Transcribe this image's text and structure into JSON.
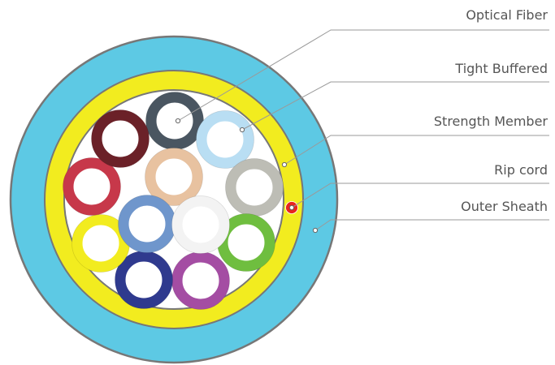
{
  "labels": {
    "optical_fiber": "Optical Fiber",
    "tight_buffered": "Tight Buffered",
    "strength_member": "Strength Member",
    "rip_cord": "Rip cord",
    "outer_sheath": "Outer Sheath"
  },
  "colors": {
    "outer_sheath": "#5DC9E4",
    "strength_member": "#F2EC1F",
    "core": "#FFFFFF",
    "outline": "#777777",
    "leader_line": "#9A9A9A",
    "rip_cord": "#E8241F",
    "fibers": [
      "#4A5661",
      "#B9DEF3",
      "#BDBDB5",
      "#6FBE3F",
      "#A44DA3",
      "#2F3A8E",
      "#F2EC1F",
      "#C7384A",
      "#6B2128",
      "#E8C2A0",
      "#6F96CC",
      "#F3F3F3"
    ]
  }
}
